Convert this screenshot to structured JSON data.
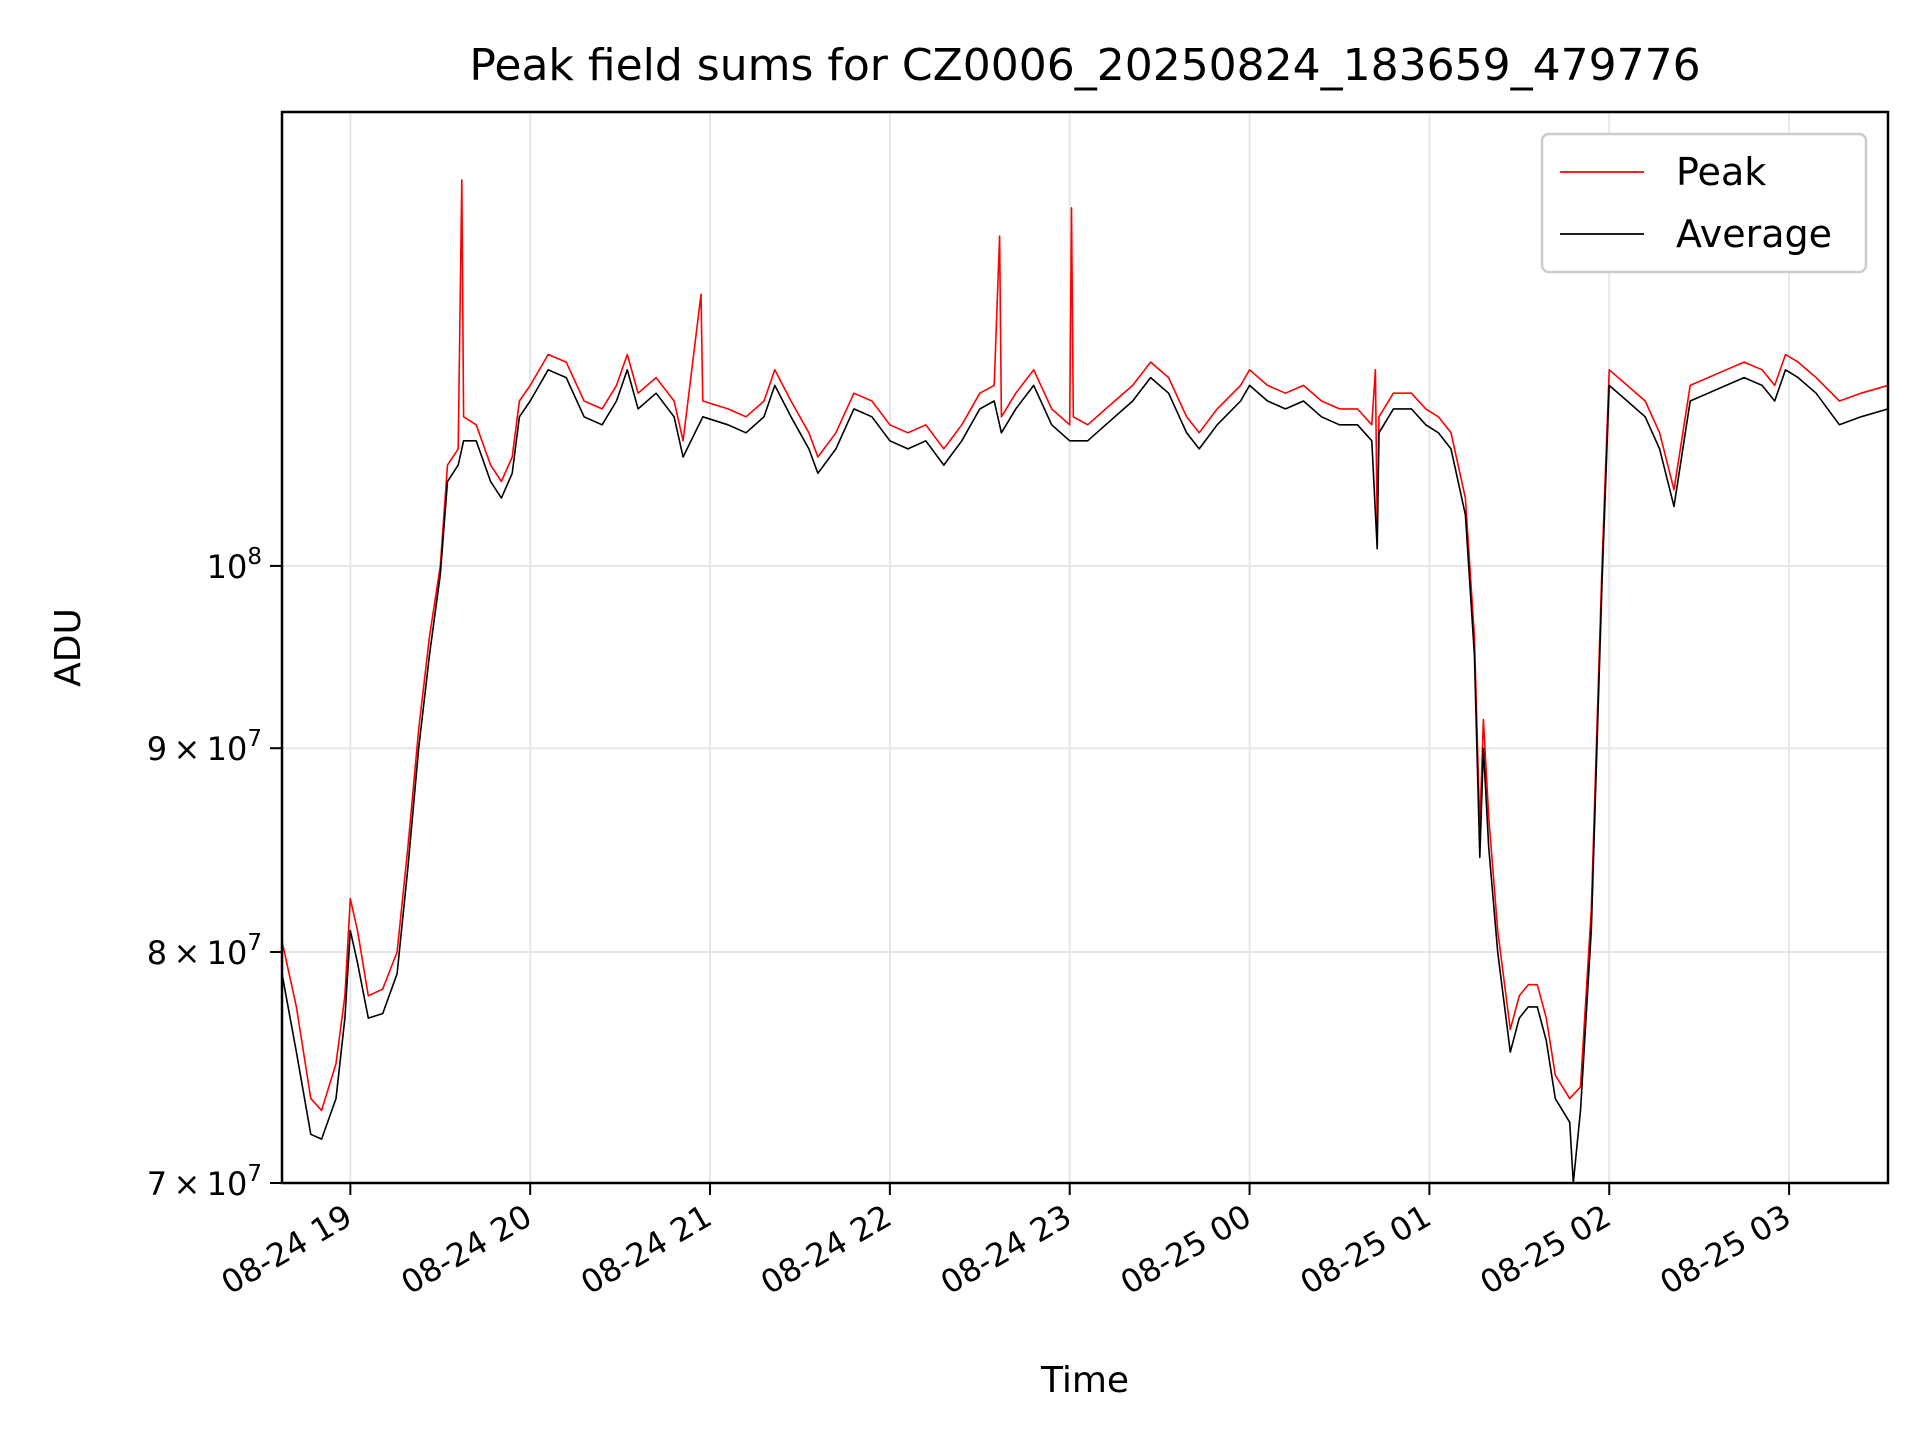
{
  "chart_data": {
    "type": "line",
    "title": "Peak field sums for CZ0006_20250824_183659_479776",
    "xlabel": "Time",
    "ylabel": "ADU",
    "yscale": "log",
    "ylim": [
      70000000,
      130000000
    ],
    "y_ticks": [
      {
        "value": 70000000,
        "mant": "7",
        "exp": "7"
      },
      {
        "value": 80000000,
        "mant": "8",
        "exp": "7"
      },
      {
        "value": 90000000,
        "mant": "9",
        "exp": "7"
      },
      {
        "value": 100000000,
        "mant": "",
        "exp": "8"
      }
    ],
    "x_ticks": [
      "08-24 19",
      "08-24 20",
      "08-24 21",
      "08-24 22",
      "08-24 23",
      "08-25 00",
      "08-25 01",
      "08-25 02",
      "08-25 03"
    ],
    "x_tick_hours": [
      19,
      20,
      21,
      22,
      23,
      24,
      25,
      26,
      27
    ],
    "x_unit": "hours since 08-24 00:00",
    "xlim": [
      18.62,
      27.55
    ],
    "grid": true,
    "legend": {
      "position": "top-right"
    },
    "series": [
      {
        "name": "Peak",
        "color": "#ff0000",
        "points": [
          [
            18.62,
            80.5
          ],
          [
            18.7,
            77.5
          ],
          [
            18.78,
            73.5
          ],
          [
            18.84,
            73.0
          ],
          [
            18.92,
            75.0
          ],
          [
            18.97,
            78.0
          ],
          [
            19.0,
            82.5
          ],
          [
            19.04,
            81.0
          ],
          [
            19.1,
            78.0
          ],
          [
            19.18,
            78.3
          ],
          [
            19.26,
            80.0
          ],
          [
            19.32,
            85.0
          ],
          [
            19.38,
            91.0
          ],
          [
            19.44,
            96.0
          ],
          [
            19.5,
            100.0
          ],
          [
            19.54,
            106.0
          ],
          [
            19.6,
            107.0
          ],
          [
            19.62,
            125.0
          ],
          [
            19.63,
            109.0
          ],
          [
            19.7,
            108.5
          ],
          [
            19.78,
            106.0
          ],
          [
            19.84,
            105.0
          ],
          [
            19.9,
            106.5
          ],
          [
            19.94,
            110.0
          ],
          [
            20.0,
            111.0
          ],
          [
            20.1,
            113.0
          ],
          [
            20.2,
            112.5
          ],
          [
            20.3,
            110.0
          ],
          [
            20.4,
            109.5
          ],
          [
            20.48,
            111.0
          ],
          [
            20.54,
            113.0
          ],
          [
            20.6,
            110.5
          ],
          [
            20.7,
            111.5
          ],
          [
            20.8,
            110.0
          ],
          [
            20.85,
            107.5
          ],
          [
            20.95,
            117.0
          ],
          [
            20.96,
            110.0
          ],
          [
            21.1,
            109.5
          ],
          [
            21.2,
            109.0
          ],
          [
            21.3,
            110.0
          ],
          [
            21.36,
            112.0
          ],
          [
            21.45,
            110.0
          ],
          [
            21.55,
            108.0
          ],
          [
            21.6,
            106.5
          ],
          [
            21.7,
            108.0
          ],
          [
            21.8,
            110.5
          ],
          [
            21.9,
            110.0
          ],
          [
            22.0,
            108.5
          ],
          [
            22.1,
            108.0
          ],
          [
            22.2,
            108.5
          ],
          [
            22.3,
            107.0
          ],
          [
            22.4,
            108.5
          ],
          [
            22.5,
            110.5
          ],
          [
            22.58,
            111.0
          ],
          [
            22.61,
            121.0
          ],
          [
            22.62,
            109.0
          ],
          [
            22.7,
            110.5
          ],
          [
            22.8,
            112.0
          ],
          [
            22.9,
            109.5
          ],
          [
            23.0,
            108.5
          ],
          [
            23.01,
            123.0
          ],
          [
            23.02,
            109.0
          ],
          [
            23.1,
            108.5
          ],
          [
            23.2,
            109.5
          ],
          [
            23.35,
            111.0
          ],
          [
            23.45,
            112.5
          ],
          [
            23.55,
            111.5
          ],
          [
            23.65,
            109.0
          ],
          [
            23.72,
            108.0
          ],
          [
            23.82,
            109.5
          ],
          [
            23.95,
            111.0
          ],
          [
            24.0,
            112.0
          ],
          [
            24.1,
            111.0
          ],
          [
            24.2,
            110.5
          ],
          [
            24.3,
            111.0
          ],
          [
            24.4,
            110.0
          ],
          [
            24.5,
            109.5
          ],
          [
            24.6,
            109.5
          ],
          [
            24.68,
            108.5
          ],
          [
            24.7,
            112.0
          ],
          [
            24.71,
            102.0
          ],
          [
            24.72,
            109.0
          ],
          [
            24.8,
            110.5
          ],
          [
            24.9,
            110.5
          ],
          [
            24.98,
            109.5
          ],
          [
            25.05,
            109.0
          ],
          [
            25.12,
            108.0
          ],
          [
            25.2,
            104.0
          ],
          [
            25.25,
            96.0
          ],
          [
            25.28,
            86.0
          ],
          [
            25.3,
            91.5
          ],
          [
            25.33,
            86.5
          ],
          [
            25.38,
            81.0
          ],
          [
            25.45,
            76.5
          ],
          [
            25.5,
            78.0
          ],
          [
            25.55,
            78.5
          ],
          [
            25.6,
            78.5
          ],
          [
            25.65,
            77.0
          ],
          [
            25.7,
            74.5
          ],
          [
            25.78,
            73.5
          ],
          [
            25.84,
            74.0
          ],
          [
            25.9,
            82.0
          ],
          [
            25.96,
            100.0
          ],
          [
            26.0,
            112.0
          ],
          [
            26.1,
            111.0
          ],
          [
            26.2,
            110.0
          ],
          [
            26.28,
            108.0
          ],
          [
            26.36,
            104.5
          ],
          [
            26.45,
            111.0
          ],
          [
            26.55,
            111.5
          ],
          [
            26.65,
            112.0
          ],
          [
            26.75,
            112.5
          ],
          [
            26.85,
            112.0
          ],
          [
            26.92,
            111.0
          ],
          [
            26.98,
            113.0
          ],
          [
            27.05,
            112.5
          ],
          [
            27.15,
            111.5
          ],
          [
            27.28,
            110.0
          ],
          [
            27.4,
            110.5
          ],
          [
            27.55,
            111.0
          ]
        ]
      },
      {
        "name": "Average",
        "color": "#000000",
        "points": [
          [
            18.62,
            79.0
          ],
          [
            18.7,
            75.5
          ],
          [
            18.78,
            72.0
          ],
          [
            18.84,
            71.8
          ],
          [
            18.92,
            73.5
          ],
          [
            18.97,
            77.0
          ],
          [
            19.0,
            81.0
          ],
          [
            19.04,
            79.5
          ],
          [
            19.1,
            77.0
          ],
          [
            19.18,
            77.2
          ],
          [
            19.26,
            79.0
          ],
          [
            19.32,
            84.0
          ],
          [
            19.38,
            90.0
          ],
          [
            19.44,
            95.0
          ],
          [
            19.5,
            99.5
          ],
          [
            19.54,
            105.0
          ],
          [
            19.6,
            106.0
          ],
          [
            19.63,
            107.5
          ],
          [
            19.7,
            107.5
          ],
          [
            19.78,
            105.0
          ],
          [
            19.84,
            104.0
          ],
          [
            19.9,
            105.5
          ],
          [
            19.94,
            109.0
          ],
          [
            20.0,
            110.0
          ],
          [
            20.1,
            112.0
          ],
          [
            20.2,
            111.5
          ],
          [
            20.3,
            109.0
          ],
          [
            20.4,
            108.5
          ],
          [
            20.48,
            110.0
          ],
          [
            20.54,
            112.0
          ],
          [
            20.6,
            109.5
          ],
          [
            20.7,
            110.5
          ],
          [
            20.8,
            109.0
          ],
          [
            20.85,
            106.5
          ],
          [
            20.96,
            109.0
          ],
          [
            21.1,
            108.5
          ],
          [
            21.2,
            108.0
          ],
          [
            21.3,
            109.0
          ],
          [
            21.36,
            111.0
          ],
          [
            21.45,
            109.0
          ],
          [
            21.55,
            107.0
          ],
          [
            21.6,
            105.5
          ],
          [
            21.7,
            107.0
          ],
          [
            21.8,
            109.5
          ],
          [
            21.9,
            109.0
          ],
          [
            22.0,
            107.5
          ],
          [
            22.1,
            107.0
          ],
          [
            22.2,
            107.5
          ],
          [
            22.3,
            106.0
          ],
          [
            22.4,
            107.5
          ],
          [
            22.5,
            109.5
          ],
          [
            22.58,
            110.0
          ],
          [
            22.62,
            108.0
          ],
          [
            22.7,
            109.5
          ],
          [
            22.8,
            111.0
          ],
          [
            22.9,
            108.5
          ],
          [
            23.0,
            107.5
          ],
          [
            23.1,
            107.5
          ],
          [
            23.2,
            108.5
          ],
          [
            23.35,
            110.0
          ],
          [
            23.45,
            111.5
          ],
          [
            23.55,
            110.5
          ],
          [
            23.65,
            108.0
          ],
          [
            23.72,
            107.0
          ],
          [
            23.82,
            108.5
          ],
          [
            23.95,
            110.0
          ],
          [
            24.0,
            111.0
          ],
          [
            24.1,
            110.0
          ],
          [
            24.2,
            109.5
          ],
          [
            24.3,
            110.0
          ],
          [
            24.4,
            109.0
          ],
          [
            24.5,
            108.5
          ],
          [
            24.6,
            108.5
          ],
          [
            24.68,
            107.5
          ],
          [
            24.71,
            101.0
          ],
          [
            24.72,
            108.0
          ],
          [
            24.8,
            109.5
          ],
          [
            24.9,
            109.5
          ],
          [
            24.98,
            108.5
          ],
          [
            25.05,
            108.0
          ],
          [
            25.12,
            107.0
          ],
          [
            25.2,
            103.0
          ],
          [
            25.25,
            95.0
          ],
          [
            25.28,
            84.5
          ],
          [
            25.3,
            90.0
          ],
          [
            25.33,
            85.0
          ],
          [
            25.38,
            80.0
          ],
          [
            25.45,
            75.5
          ],
          [
            25.5,
            77.0
          ],
          [
            25.55,
            77.5
          ],
          [
            25.6,
            77.5
          ],
          [
            25.65,
            76.0
          ],
          [
            25.7,
            73.5
          ],
          [
            25.78,
            72.5
          ],
          [
            25.8,
            70.0
          ],
          [
            25.84,
            73.0
          ],
          [
            25.9,
            81.0
          ],
          [
            25.96,
            99.0
          ],
          [
            26.0,
            111.0
          ],
          [
            26.1,
            110.0
          ],
          [
            26.2,
            109.0
          ],
          [
            26.28,
            107.0
          ],
          [
            26.36,
            103.5
          ],
          [
            26.45,
            110.0
          ],
          [
            26.55,
            110.5
          ],
          [
            26.65,
            111.0
          ],
          [
            26.75,
            111.5
          ],
          [
            26.85,
            111.0
          ],
          [
            26.92,
            110.0
          ],
          [
            26.98,
            112.0
          ],
          [
            27.05,
            111.5
          ],
          [
            27.15,
            110.5
          ],
          [
            27.28,
            108.5
          ],
          [
            27.4,
            109.0
          ],
          [
            27.55,
            109.5
          ]
        ]
      }
    ]
  }
}
